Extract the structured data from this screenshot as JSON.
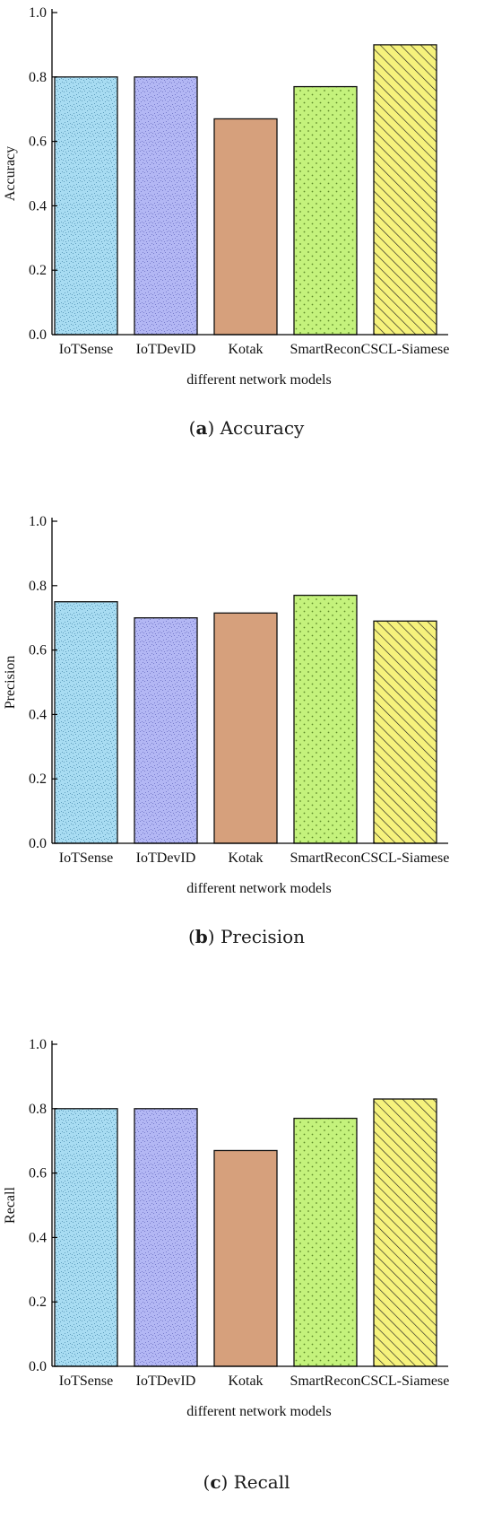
{
  "chart_data": [
    {
      "type": "bar",
      "caption_letter": "a",
      "caption_text": "Accuracy",
      "ylabel": "Accuracy",
      "xlabel": "different network models",
      "categories": [
        "IoTSense",
        "IoTDevID",
        "Kotak",
        "SmartRecon",
        "CSCL-Siamese"
      ],
      "values": [
        0.8,
        0.8,
        0.67,
        0.77,
        0.9
      ],
      "ylim": [
        0.0,
        1.0
      ],
      "yticks": [
        "0.0",
        "0.2",
        "0.4",
        "0.6",
        "0.8",
        "1.0"
      ],
      "grid": false
    },
    {
      "type": "bar",
      "caption_letter": "b",
      "caption_text": "Precision",
      "ylabel": "Precision",
      "xlabel": "different network models",
      "categories": [
        "IoTSense",
        "IoTDevID",
        "Kotak",
        "SmartRecon",
        "CSCL-Siamese"
      ],
      "values": [
        0.75,
        0.7,
        0.715,
        0.77,
        0.69
      ],
      "ylim": [
        0.0,
        1.0
      ],
      "yticks": [
        "0.0",
        "0.2",
        "0.4",
        "0.6",
        "0.8",
        "1.0"
      ],
      "grid": false
    },
    {
      "type": "bar",
      "caption_letter": "c",
      "caption_text": "Recall",
      "ylabel": "Recall",
      "xlabel": "different network models",
      "categories": [
        "IoTSense",
        "IoTDevID",
        "Kotak",
        "SmartRecon",
        "CSCL-Siamese"
      ],
      "values": [
        0.8,
        0.8,
        0.67,
        0.77,
        0.83
      ],
      "ylim": [
        0.0,
        1.0
      ],
      "yticks": [
        "0.0",
        "0.2",
        "0.4",
        "0.6",
        "0.8",
        "1.0"
      ],
      "grid": false
    }
  ],
  "bar_styles": [
    {
      "fill": "#a8dcf2",
      "pattern": "speckle",
      "pattern_color": "#4f8fb0"
    },
    {
      "fill": "#b3b7f4",
      "pattern": "speckle",
      "pattern_color": "#6a6ec2"
    },
    {
      "fill": "#d6a07c",
      "pattern": "none",
      "pattern_color": "#d6a07c"
    },
    {
      "fill": "#c4f27c",
      "pattern": "dots",
      "pattern_color": "#5f8a2a"
    },
    {
      "fill": "#f6f27c",
      "pattern": "hatch",
      "pattern_color": "#222222"
    }
  ]
}
